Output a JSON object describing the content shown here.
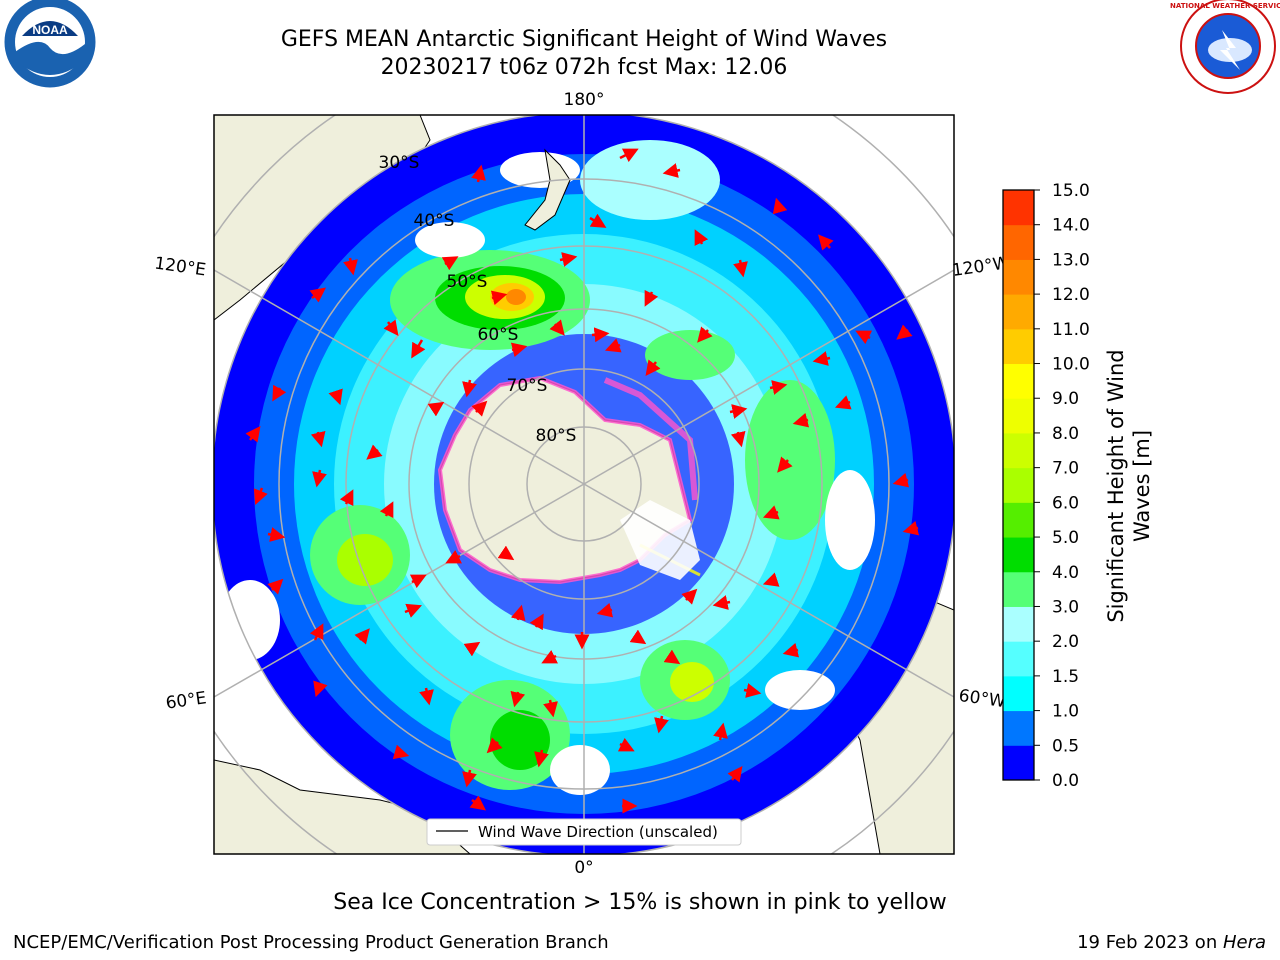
{
  "title_line1": "GEFS MEAN Antarctic Significant Height of Wind Waves",
  "title_line2": "20230217 t06z 072h fcst   Max: 12.06",
  "logos": {
    "left": "NOAA",
    "right": "NATIONAL WEATHER SERVICE"
  },
  "map": {
    "projection": "south-polar-stereographic",
    "lon_labels": {
      "top": "180°",
      "bottom": "0°",
      "upper_left": "120°E",
      "upper_right": "120°W",
      "lower_left": "60°E",
      "lower_right": "60°W"
    },
    "lat_labels": [
      "30°S",
      "40°S",
      "50°S",
      "60°S",
      "70°S",
      "80°S"
    ],
    "legend": "Wind Wave Direction (unscaled)",
    "colors": {
      "land": "#efefdc",
      "arrow": "#ff0000",
      "grid": "#b0b0b0",
      "sea_ice": "#ff55cc"
    }
  },
  "colorbar": {
    "label_line1": "Significant Height of Wind",
    "label_line2": "Waves [m]",
    "ticks": [
      "0.0",
      "0.5",
      "1.0",
      "1.5",
      "2.0",
      "3.0",
      "4.0",
      "5.0",
      "6.0",
      "7.0",
      "8.0",
      "9.0",
      "10.0",
      "11.0",
      "12.0",
      "13.0",
      "14.0",
      "15.0"
    ],
    "colors": [
      "#0000ff",
      "#0077ff",
      "#00ffff",
      "#55ffff",
      "#aaffff",
      "#55ff77",
      "#00dd00",
      "#55ee00",
      "#aaff00",
      "#ccff00",
      "#eeff00",
      "#ffff00",
      "#ffcc00",
      "#ffaa00",
      "#ff8800",
      "#ff6600",
      "#ff3300"
    ]
  },
  "caption": "Sea Ice Concentration > 15% is shown in pink to yellow",
  "footer_left": "NCEP/EMC/Verification Post Processing Product Generation Branch",
  "footer_date": "19 Feb 2023 on ",
  "footer_machine": "Hera"
}
